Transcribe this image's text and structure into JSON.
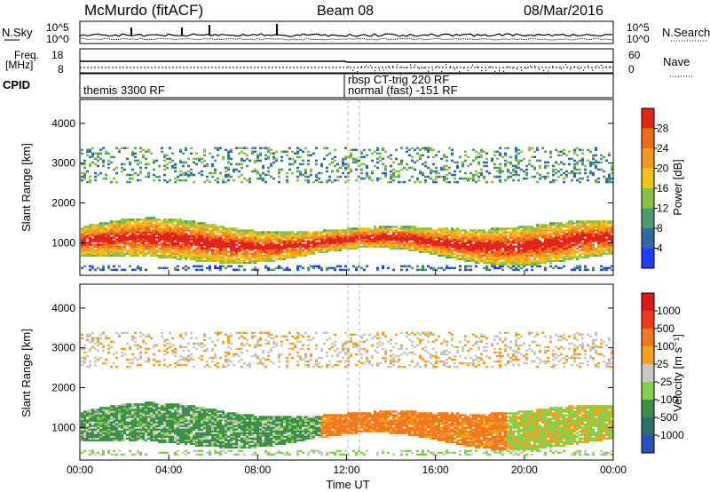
{
  "header": {
    "station": "McMurdo (fitACF)",
    "beam": "Beam 08",
    "date": "08/Mar/2016"
  },
  "nsky_panel": {
    "left_label": "N.Sky",
    "right_label": "N.Search",
    "left_ticks": [
      "10^5",
      "10^0"
    ],
    "right_ticks": [
      "10^5",
      "10^0"
    ]
  },
  "freq_panel": {
    "left_label_line1": "Freq.",
    "left_label_line2": "[MHz]",
    "right_label": "Nave",
    "left_ticks": [
      "18",
      "8"
    ],
    "right_ticks": [
      "60",
      "0"
    ]
  },
  "cpid_panel": {
    "label": "CPID",
    "entries": [
      "themis 3300 RF",
      "rbsp CT-trig 220 RF",
      "normal (fast) -151 RF"
    ]
  },
  "chart_data": [
    {
      "type": "heatmap",
      "name": "Power",
      "ylabel": "Slant Range [km]",
      "xlabel": "",
      "y_ticks": [
        1000,
        2000,
        3000,
        4000
      ],
      "ylim": [
        180,
        4600
      ],
      "colorbar_label": "Power [dB]",
      "colorbar_ticks": [
        "4",
        "8",
        "12",
        "16",
        "20",
        "24",
        "28"
      ],
      "colorbar_colors": [
        "#1f3dff",
        "#2e6aa8",
        "#4f9a6a",
        "#8bbf4a",
        "#f2c21b",
        "#f39a1e",
        "#f06a1a",
        "#e3241c"
      ]
    },
    {
      "type": "heatmap",
      "name": "Velocity",
      "ylabel": "Slant Range [km]",
      "xlabel": "Time UT",
      "y_ticks": [
        1000,
        2000,
        3000,
        4000
      ],
      "ylim": [
        180,
        4600
      ],
      "x_ticks": [
        "00:00",
        "04:00",
        "08:00",
        "12:00",
        "16:00",
        "20:00",
        "00:00"
      ],
      "colorbar_label": "Velocity [m s⁻¹]",
      "colorbar_ticks": [
        "1000",
        "500",
        "100",
        "25",
        "-25",
        "-100",
        "-500",
        "-1000"
      ],
      "colorbar_colors": [
        "#2a4fbf",
        "#2f6e6a",
        "#3f8f4a",
        "#7fd24a",
        "#c8c8c0",
        "#f5a020",
        "#f07820",
        "#ea3a1a",
        "#e01818"
      ]
    }
  ]
}
